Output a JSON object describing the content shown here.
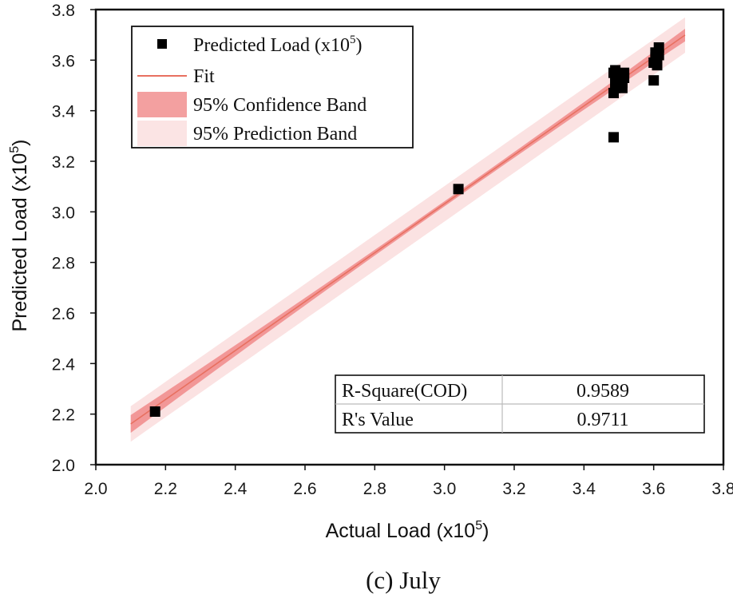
{
  "chart_data": {
    "type": "scatter",
    "caption": "(c) July",
    "xlabel": "Actual Load (x10",
    "xlabel_exp": "5",
    "xlabel_close": ")",
    "ylabel": "Predicted Load (x10",
    "ylabel_exp": "5",
    "ylabel_close": ")",
    "xlim": [
      2.0,
      3.8
    ],
    "ylim": [
      2.0,
      3.8
    ],
    "x_ticks": [
      "2.0",
      "2.2",
      "2.4",
      "2.6",
      "2.8",
      "3.0",
      "3.2",
      "3.4",
      "3.6",
      "3.8"
    ],
    "y_ticks": [
      "2.0",
      "2.2",
      "2.4",
      "2.6",
      "2.8",
      "3.0",
      "3.2",
      "3.4",
      "3.6",
      "3.8"
    ],
    "series": [
      {
        "name": "Predicted Load (x10",
        "name_exp": "5",
        "name_close": ")",
        "marker": "square",
        "color": "#000000",
        "x": [
          2.17,
          3.04,
          3.485,
          3.485,
          3.485,
          3.49,
          3.49,
          3.49,
          3.49,
          3.51,
          3.51,
          3.515,
          3.515,
          3.6,
          3.6,
          3.605,
          3.605,
          3.61,
          3.61,
          3.615,
          3.615
        ],
        "y": [
          2.21,
          3.09,
          3.295,
          3.47,
          3.55,
          3.49,
          3.51,
          3.53,
          3.56,
          3.49,
          3.51,
          3.53,
          3.55,
          3.52,
          3.59,
          3.61,
          3.63,
          3.58,
          3.6,
          3.62,
          3.65
        ]
      }
    ],
    "fit": {
      "name": "Fit",
      "color": "#e87060",
      "x_range": [
        2.1,
        3.69
      ],
      "slope": 0.9675,
      "intercept": 0.1293
    },
    "confidence_band": {
      "name": "95% Confidence Band",
      "color": "#f08a8a",
      "half_width_ends": 0.035,
      "half_width_mid": 0.01,
      "center_x": 3.0
    },
    "prediction_band": {
      "name": "95% Prediction Band",
      "color": "#fbe2e2",
      "half_width": 0.07
    },
    "stats_table": [
      {
        "label": "R-Square(COD)",
        "value": "0.9589"
      },
      {
        "label": "R's Value",
        "value": "0.9711"
      }
    ]
  }
}
